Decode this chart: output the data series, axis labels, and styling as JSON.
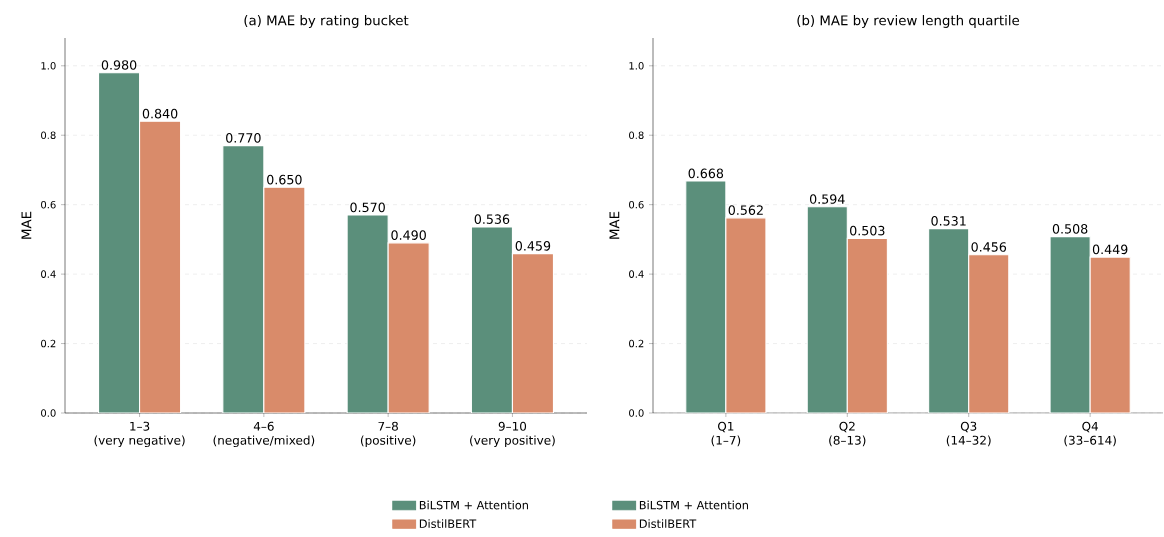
{
  "chart_data": [
    {
      "type": "bar",
      "title": "(a) MAE by rating bucket",
      "ylabel": "MAE",
      "categories": [
        "1–3\n(very negative)",
        "4–6\n(negative/mixed)",
        "7–8\n(positive)",
        "9–10\n(very positive)"
      ],
      "series": [
        {
          "name": "BiLSTM + Attention",
          "color": "#5b8f7b",
          "values": [
            0.98,
            0.77,
            0.57,
            0.536
          ],
          "value_labels": [
            "0.980",
            "0.770",
            "0.570",
            "0.536"
          ]
        },
        {
          "name": "DistilBERT",
          "color": "#d98b6a",
          "values": [
            0.84,
            0.65,
            0.49,
            0.459
          ],
          "value_labels": [
            "0.840",
            "0.650",
            "0.490",
            "0.459"
          ]
        }
      ],
      "ylim": [
        0,
        1.08
      ],
      "yticks": [
        {
          "value": 0,
          "label": "0.0"
        },
        {
          "value": 0.2,
          "label": "0.2"
        },
        {
          "value": 0.4,
          "label": "0.4"
        },
        {
          "value": 0.6,
          "label": "0.6"
        },
        {
          "value": 0.8,
          "label": "0.8"
        },
        {
          "value": 1.0,
          "label": "1.0"
        }
      ],
      "grid": "y",
      "legend": "bottom"
    },
    {
      "type": "bar",
      "title": "(b) MAE by review length quartile",
      "ylabel": "MAE",
      "categories": [
        "Q1\n(1–7)",
        "Q2\n(8–13)",
        "Q3\n(14–32)",
        "Q4\n(33–614)"
      ],
      "series": [
        {
          "name": "BiLSTM + Attention",
          "color": "#5b8f7b",
          "values": [
            0.668,
            0.594,
            0.531,
            0.508
          ],
          "value_labels": [
            "0.668",
            "0.594",
            "0.531",
            "0.508"
          ]
        },
        {
          "name": "DistilBERT",
          "color": "#d98b6a",
          "values": [
            0.562,
            0.503,
            0.456,
            0.449
          ],
          "value_labels": [
            "0.562",
            "0.503",
            "0.456",
            "0.449"
          ]
        }
      ],
      "ylim": [
        0,
        1.08
      ],
      "yticks": [
        {
          "value": 0,
          "label": "0.0"
        },
        {
          "value": 0.2,
          "label": "0.2"
        },
        {
          "value": 0.4,
          "label": "0.4"
        },
        {
          "value": 0.6,
          "label": "0.6"
        },
        {
          "value": 0.8,
          "label": "0.8"
        },
        {
          "value": 1.0,
          "label": "1.0"
        }
      ],
      "grid": "y",
      "legend": "bottom"
    }
  ]
}
